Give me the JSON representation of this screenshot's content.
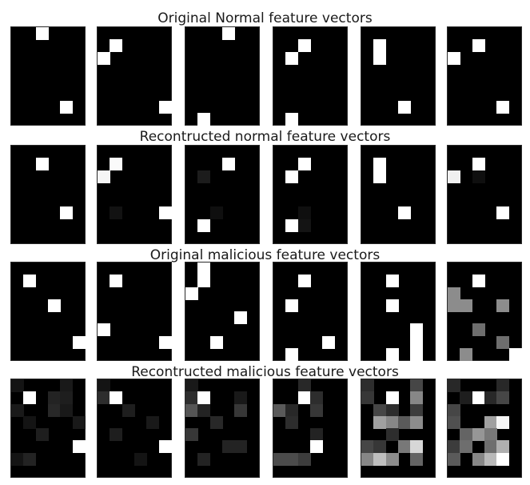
{
  "figure": {
    "rows": [
      {
        "title": "Original Normal feature vectors",
        "panels": [
          {
            "cells": [
              [
                0,
                2,
                255
              ],
              [
                6,
                4,
                255
              ]
            ]
          },
          {
            "cells": [
              [
                1,
                1,
                255
              ],
              [
                2,
                0,
                255
              ],
              [
                6,
                5,
                255
              ]
            ]
          },
          {
            "cells": [
              [
                0,
                3,
                255
              ],
              [
                7,
                1,
                255
              ]
            ]
          },
          {
            "cells": [
              [
                1,
                2,
                255
              ],
              [
                2,
                1,
                255
              ],
              [
                7,
                1,
                255
              ]
            ]
          },
          {
            "cells": [
              [
                1,
                1,
                255
              ],
              [
                2,
                1,
                255
              ],
              [
                6,
                3,
                255
              ]
            ]
          },
          {
            "cells": [
              [
                1,
                2,
                255
              ],
              [
                2,
                0,
                255
              ],
              [
                6,
                4,
                255
              ]
            ]
          }
        ]
      },
      {
        "title": "Recontructed normal feature vectors",
        "panels": [
          {
            "cells": [
              [
                1,
                2,
                255
              ],
              [
                5,
                4,
                255
              ]
            ]
          },
          {
            "cells": [
              [
                1,
                1,
                250
              ],
              [
                2,
                0,
                245
              ],
              [
                5,
                1,
                18
              ],
              [
                5,
                5,
                255
              ]
            ]
          },
          {
            "cells": [
              [
                1,
                3,
                255
              ],
              [
                2,
                1,
                28
              ],
              [
                5,
                2,
                15
              ],
              [
                6,
                1,
                255
              ]
            ]
          },
          {
            "cells": [
              [
                1,
                2,
                255
              ],
              [
                2,
                1,
                255
              ],
              [
                5,
                2,
                15
              ],
              [
                6,
                1,
                255
              ],
              [
                6,
                2,
                20
              ]
            ]
          },
          {
            "cells": [
              [
                1,
                1,
                255
              ],
              [
                2,
                1,
                255
              ],
              [
                5,
                3,
                255
              ]
            ]
          },
          {
            "cells": [
              [
                1,
                2,
                255
              ],
              [
                2,
                0,
                240
              ],
              [
                2,
                2,
                15
              ],
              [
                5,
                4,
                255
              ]
            ]
          }
        ]
      },
      {
        "title": "Original malicious feature vectors",
        "panels": [
          {
            "cells": [
              [
                1,
                1,
                255
              ],
              [
                3,
                3,
                255
              ],
              [
                6,
                5,
                255
              ]
            ]
          },
          {
            "cells": [
              [
                1,
                1,
                255
              ],
              [
                5,
                0,
                255
              ],
              [
                6,
                5,
                255
              ]
            ]
          },
          {
            "cells": [
              [
                0,
                1,
                255
              ],
              [
                1,
                1,
                255
              ],
              [
                2,
                0,
                255
              ],
              [
                4,
                4,
                255
              ],
              [
                6,
                2,
                255
              ]
            ]
          },
          {
            "cells": [
              [
                1,
                2,
                255
              ],
              [
                3,
                1,
                255
              ],
              [
                6,
                4,
                255
              ],
              [
                7,
                1,
                255
              ]
            ]
          },
          {
            "cells": [
              [
                1,
                2,
                255
              ],
              [
                3,
                2,
                255
              ],
              [
                5,
                4,
                255
              ],
              [
                6,
                4,
                255
              ],
              [
                7,
                2,
                255
              ],
              [
                7,
                4,
                255
              ]
            ]
          },
          {
            "cells": [
              [
                1,
                2,
                255
              ],
              [
                2,
                0,
                140
              ],
              [
                3,
                0,
                140
              ],
              [
                3,
                1,
                140
              ],
              [
                3,
                4,
                140
              ],
              [
                5,
                2,
                110
              ],
              [
                6,
                4,
                110
              ],
              [
                7,
                1,
                140
              ],
              [
                7,
                5,
                255
              ]
            ]
          }
        ]
      },
      {
        "title": "Recontructed malicious feature vectors",
        "panels": [
          {
            "cells": [
              [
                0,
                0,
                20
              ],
              [
                0,
                4,
                25
              ],
              [
                1,
                1,
                255
              ],
              [
                1,
                3,
                35
              ],
              [
                1,
                4,
                30
              ],
              [
                2,
                0,
                25
              ],
              [
                2,
                3,
                40
              ],
              [
                2,
                4,
                25
              ],
              [
                3,
                1,
                20
              ],
              [
                3,
                5,
                25
              ],
              [
                4,
                2,
                30
              ],
              [
                5,
                5,
                255
              ],
              [
                6,
                0,
                20
              ],
              [
                6,
                1,
                35
              ]
            ]
          },
          {
            "cells": [
              [
                0,
                0,
                20
              ],
              [
                1,
                0,
                45
              ],
              [
                1,
                1,
                255
              ],
              [
                2,
                2,
                30
              ],
              [
                3,
                4,
                25
              ],
              [
                4,
                1,
                30
              ],
              [
                5,
                5,
                255
              ],
              [
                6,
                3,
                20
              ]
            ]
          },
          {
            "cells": [
              [
                0,
                0,
                25
              ],
              [
                1,
                0,
                45
              ],
              [
                1,
                1,
                255
              ],
              [
                1,
                4,
                25
              ],
              [
                2,
                0,
                85
              ],
              [
                2,
                1,
                35
              ],
              [
                2,
                4,
                55
              ],
              [
                3,
                2,
                40
              ],
              [
                4,
                0,
                55
              ],
              [
                5,
                3,
                35
              ],
              [
                5,
                4,
                35
              ],
              [
                6,
                1,
                35
              ]
            ]
          },
          {
            "cells": [
              [
                0,
                2,
                40
              ],
              [
                1,
                2,
                255
              ],
              [
                1,
                3,
                45
              ],
              [
                2,
                0,
                90
              ],
              [
                2,
                1,
                40
              ],
              [
                2,
                3,
                55
              ],
              [
                3,
                1,
                45
              ],
              [
                4,
                3,
                35
              ],
              [
                5,
                3,
                255
              ],
              [
                6,
                0,
                75
              ],
              [
                6,
                1,
                75
              ],
              [
                6,
                2,
                60
              ]
            ]
          },
          {
            "cells": [
              [
                0,
                0,
                45
              ],
              [
                0,
                4,
                70
              ],
              [
                1,
                0,
                55
              ],
              [
                1,
                2,
                255
              ],
              [
                1,
                4,
                135
              ],
              [
                2,
                1,
                70
              ],
              [
                2,
                2,
                45
              ],
              [
                2,
                4,
                60
              ],
              [
                3,
                1,
                160
              ],
              [
                3,
                2,
                135
              ],
              [
                3,
                3,
                90
              ],
              [
                3,
                4,
                140
              ],
              [
                4,
                2,
                45
              ],
              [
                5,
                0,
                70
              ],
              [
                5,
                1,
                55
              ],
              [
                5,
                3,
                120
              ],
              [
                5,
                4,
                215
              ],
              [
                6,
                0,
                135
              ],
              [
                6,
                1,
                190
              ],
              [
                6,
                2,
                140
              ],
              [
                6,
                4,
                100
              ]
            ]
          },
          {
            "cells": [
              [
                0,
                0,
                40
              ],
              [
                0,
                4,
                40
              ],
              [
                1,
                1,
                30
              ],
              [
                1,
                2,
                255
              ],
              [
                1,
                3,
                40
              ],
              [
                1,
                4,
                70
              ],
              [
                2,
                0,
                70
              ],
              [
                3,
                0,
                80
              ],
              [
                3,
                3,
                160
              ],
              [
                3,
                4,
                245
              ],
              [
                4,
                1,
                100
              ],
              [
                4,
                2,
                150
              ],
              [
                4,
                3,
                120
              ],
              [
                5,
                0,
                60
              ],
              [
                5,
                1,
                110
              ],
              [
                5,
                3,
                110
              ],
              [
                5,
                4,
                175
              ],
              [
                6,
                0,
                90
              ],
              [
                6,
                2,
                135
              ],
              [
                6,
                3,
                185
              ],
              [
                6,
                4,
                255
              ]
            ]
          }
        ]
      }
    ]
  }
}
